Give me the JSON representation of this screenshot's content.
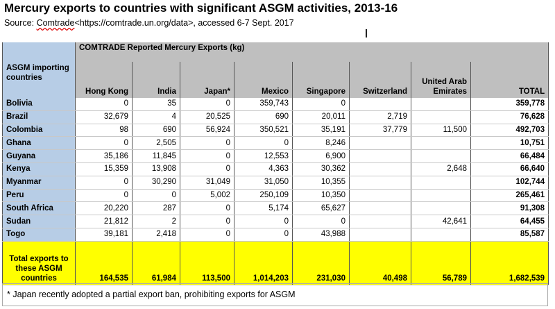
{
  "title": "Mercury exports to countries with significant ASGM activities, 2013-16",
  "source": {
    "prefix": "Source: ",
    "link": "Comtrade",
    "rest": "<https://comtrade.un.org/data>, accessed 6-7 Sept. 2017"
  },
  "table": {
    "span_header": "COMTRADE Reported Mercury Exports (kg)",
    "row_header": "ASGM importing countries",
    "columns": [
      "Hong Kong",
      "India",
      "Japan*",
      "Mexico",
      "Singapore",
      "Switzerland",
      "United Arab Emirates",
      "TOTAL"
    ],
    "rows": [
      {
        "country": "Bolivia",
        "values": [
          "0",
          "35",
          "0",
          "359,743",
          "0",
          "",
          "",
          "359,778"
        ]
      },
      {
        "country": "Brazil",
        "values": [
          "32,679",
          "4",
          "20,525",
          "690",
          "20,011",
          "2,719",
          "",
          "76,628"
        ]
      },
      {
        "country": "Colombia",
        "values": [
          "98",
          "690",
          "56,924",
          "350,521",
          "35,191",
          "37,779",
          "11,500",
          "492,703"
        ]
      },
      {
        "country": "Ghana",
        "values": [
          "0",
          "2,505",
          "0",
          "0",
          "8,246",
          "",
          "",
          "10,751"
        ]
      },
      {
        "country": "Guyana",
        "values": [
          "35,186",
          "11,845",
          "0",
          "12,553",
          "6,900",
          "",
          "",
          "66,484"
        ]
      },
      {
        "country": "Kenya",
        "values": [
          "15,359",
          "13,908",
          "0",
          "4,363",
          "30,362",
          "",
          "2,648",
          "66,640"
        ]
      },
      {
        "country": "Myanmar",
        "values": [
          "0",
          "30,290",
          "31,049",
          "31,050",
          "10,355",
          "",
          "",
          "102,744"
        ]
      },
      {
        "country": "Peru",
        "values": [
          "0",
          "0",
          "5,002",
          "250,109",
          "10,350",
          "",
          "",
          "265,461"
        ]
      },
      {
        "country": "South Africa",
        "values": [
          "20,220",
          "287",
          "0",
          "5,174",
          "65,627",
          "",
          "",
          "91,308"
        ]
      },
      {
        "country": "Sudan",
        "values": [
          "21,812",
          "2",
          "0",
          "0",
          "0",
          "",
          "42,641",
          "64,455"
        ]
      },
      {
        "country": "Togo",
        "values": [
          "39,181",
          "2,418",
          "0",
          "0",
          "43,988",
          "",
          "",
          "85,587"
        ]
      }
    ],
    "totals": {
      "label": "Total exports to these ASGM countries",
      "values": [
        "164,535",
        "61,984",
        "113,500",
        "1,014,203",
        "231,030",
        "40,498",
        "56,789",
        "1,682,539"
      ]
    }
  },
  "footnote": "* Japan recently adopted a partial export ban, prohibiting exports for ASGM",
  "colors": {
    "country_column": "#b7cde6",
    "header": "#bfbfbf",
    "totals_row": "#ffff00"
  }
}
